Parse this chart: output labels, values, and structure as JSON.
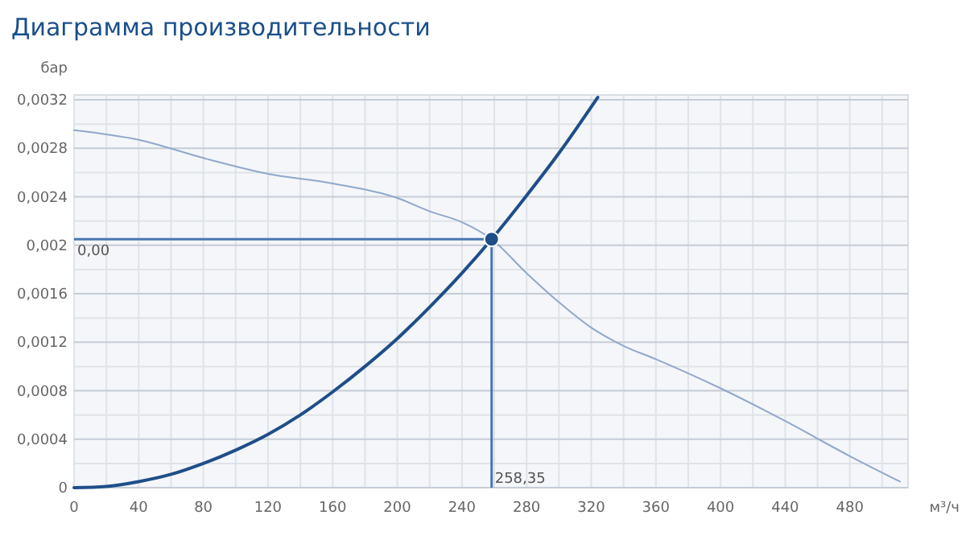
{
  "chart_data": {
    "type": "line",
    "title": "Диаграмма производительности",
    "xlabel": "м³/ч",
    "ylabel": "бар",
    "xlim": [
      0,
      516
    ],
    "ylim": [
      0,
      0.00324
    ],
    "xticks": [
      0,
      {
        "value": 20,
        "label": null
      },
      40,
      {
        "value": 60,
        "label": null
      },
      80,
      {
        "value": 100,
        "label": null
      },
      120,
      {
        "value": 140,
        "label": null
      },
      160,
      {
        "value": 180,
        "label": null
      },
      200,
      {
        "value": 220,
        "label": null
      },
      240,
      {
        "value": 260,
        "label": null
      },
      280,
      {
        "value": 300,
        "label": null
      },
      320,
      {
        "value": 340,
        "label": null
      },
      360,
      {
        "value": 380,
        "label": null
      },
      400,
      {
        "value": 420,
        "label": null
      },
      440,
      {
        "value": 460,
        "label": null
      },
      480,
      {
        "value": 500,
        "label": null
      }
    ],
    "yticks": [
      0,
      {
        "value": 0.0002,
        "label": null
      },
      {
        "value": 0.0004,
        "label": "0,0004"
      },
      {
        "value": 0.0006,
        "label": null
      },
      {
        "value": 0.0008,
        "label": "0,0008"
      },
      {
        "value": 0.001,
        "label": null
      },
      {
        "value": 0.0012,
        "label": "0,0012"
      },
      {
        "value": 0.0014,
        "label": null
      },
      {
        "value": 0.0016,
        "label": "0,0016"
      },
      {
        "value": 0.0018,
        "label": null
      },
      {
        "value": 0.002,
        "label": "0,002"
      },
      {
        "value": 0.0022,
        "label": null
      },
      {
        "value": 0.0024,
        "label": "0,0024"
      },
      {
        "value": 0.0026,
        "label": null
      },
      {
        "value": 0.0028,
        "label": "0,0028"
      },
      {
        "value": 0.003,
        "label": null
      },
      {
        "value": 0.0032,
        "label": "0,0032"
      }
    ],
    "grid": true,
    "series": [
      {
        "color": "#8fa8cb",
        "x": [
          0,
          40,
          80,
          120,
          160,
          200,
          220,
          240,
          258.35,
          280,
          300,
          320,
          340,
          360,
          400,
          440,
          480,
          511
        ],
        "values": [
          0.00295,
          0.00287,
          0.00272,
          0.00259,
          0.00251,
          0.00239,
          0.00228,
          0.00219,
          0.00205,
          0.00177,
          0.00153,
          0.00132,
          0.00117,
          0.00106,
          0.00082,
          0.00055,
          0.00026,
          5e-05
        ]
      },
      {
        "color": "#1f4e89",
        "x": [
          0,
          20,
          40,
          60,
          80,
          100,
          120,
          140,
          160,
          180,
          200,
          220,
          240,
          258.35,
          280,
          300,
          324
        ],
        "values": [
          0,
          1e-05,
          5e-05,
          0.00011,
          0.0002,
          0.00031,
          0.00044,
          0.0006,
          0.00079,
          0.001,
          0.00123,
          0.00149,
          0.00177,
          0.00205,
          0.00241,
          0.00276,
          0.00322
        ]
      },
      {
        "type": "scatter",
        "color": "#1f4e89",
        "marker": "circle",
        "x": [
          258.35
        ],
        "values": [
          0.00205
        ]
      }
    ],
    "ref_lines": [
      {
        "axis": "y",
        "value": 0.00205,
        "label": "0,00",
        "color": "#4a76b0"
      },
      {
        "axis": "x",
        "value": 258.35,
        "label": "258,35",
        "color": "#4a76b0"
      }
    ]
  }
}
